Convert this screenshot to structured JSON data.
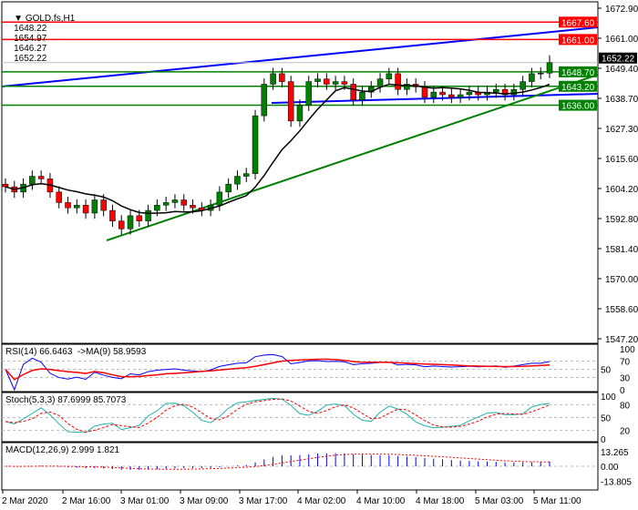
{
  "header": {
    "symbol": "GOLD.fs,H1",
    "open": "1648.22",
    "high": "1654.97",
    "low": "1646.27",
    "close": "1652.22"
  },
  "price_axis": {
    "ticks": [
      "1672.90",
      "1661.00",
      "1649.40",
      "1638.70",
      "1627.30",
      "1615.60",
      "1604.20",
      "1592.80",
      "1581.40",
      "1570.00",
      "1558.60",
      "1547.20"
    ],
    "range": [
      1547.2,
      1672.9
    ]
  },
  "levels": [
    {
      "label": "1667.60",
      "value": 1667.6,
      "color": "#ff0000"
    },
    {
      "label": "1661.00",
      "value": 1661.0,
      "color": "#ff0000"
    },
    {
      "label": "1648.70",
      "value": 1648.7,
      "color": "#008000"
    },
    {
      "label": "1643.20",
      "value": 1643.2,
      "color": "#008000"
    },
    {
      "label": "1636.00",
      "value": 1636.0,
      "color": "#008000"
    }
  ],
  "current_price": {
    "label": "1652.22",
    "value": 1652.22
  },
  "rsi": {
    "label": "RSI(14) 66.6463  ->MA(9) 58.9593",
    "ticks": [
      "100",
      "70",
      "50",
      "30",
      "0"
    ]
  },
  "stoch": {
    "label": "Stoch(5,3,3) 87.6999 85.7073",
    "ticks": [
      "100",
      "80",
      "50",
      "20",
      "0"
    ]
  },
  "macd": {
    "label": "MACD(12,26,9) 2.999 1.821",
    "ticks": [
      "13.265",
      "0.00",
      "-13.805"
    ]
  },
  "time_axis": [
    "2 Mar 2020",
    "2 Mar 16:00",
    "3 Mar 01:00",
    "3 Mar 09:00",
    "3 Mar 17:00",
    "4 Mar 02:00",
    "4 Mar 10:00",
    "4 Mar 18:00",
    "5 Mar 03:00",
    "5 Mar 11:00"
  ],
  "colors": {
    "bull": "#008000",
    "bear": "#ff0000",
    "trend_blue": "#0000ff",
    "trend_green": "#008000",
    "rsi": "#0000ff",
    "rsi_ma": "#ff0000",
    "stoch_main": "#20b2aa",
    "stoch_signal": "#ff0000",
    "macd_hist": "#0000ff",
    "macd_signal": "#ff0000"
  },
  "chart_data": {
    "type": "candlestick",
    "closes": [
      1605,
      1603,
      1606,
      1609,
      1608,
      1603,
      1599,
      1597,
      1598,
      1595,
      1600,
      1596,
      1592,
      1589,
      1594,
      1592,
      1596,
      1598,
      1599,
      1600,
      1598,
      1597,
      1596,
      1598,
      1603,
      1606,
      1609,
      1610,
      1632,
      1644,
      1648,
      1645,
      1630,
      1636,
      1645,
      1646,
      1644,
      1645,
      1644,
      1638,
      1641,
      1643,
      1646,
      1648,
      1642,
      1644,
      1643,
      1639,
      1641,
      1640,
      1639,
      1640,
      1641,
      1640,
      1641,
      1642,
      1640,
      1642,
      1645,
      1648,
      1648.22,
      1652.22
    ],
    "last_bar": {
      "open": 1648.22,
      "high": 1654.97,
      "low": 1646.27,
      "close": 1652.22
    }
  }
}
